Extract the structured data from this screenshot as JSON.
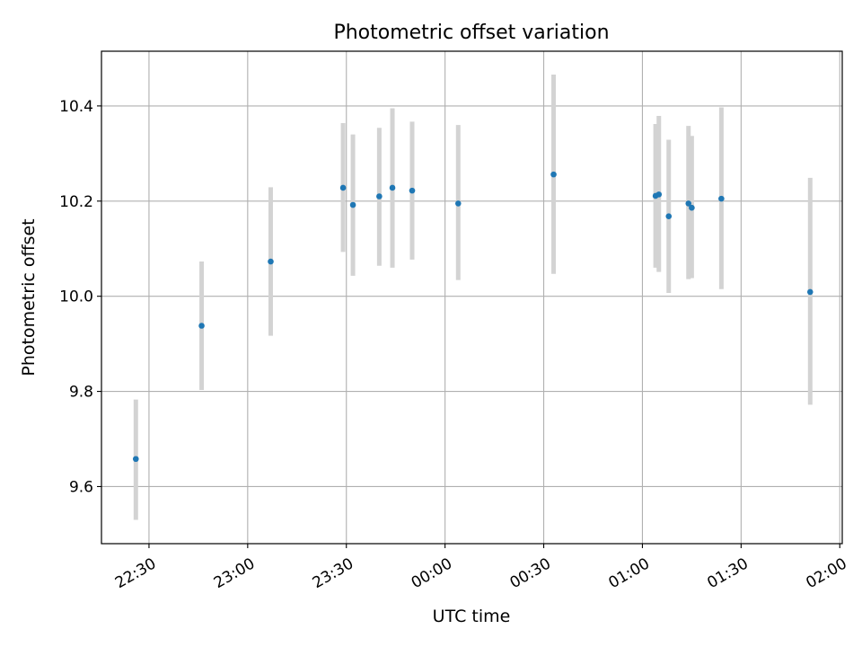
{
  "chart_data": {
    "type": "scatter",
    "title": "Photometric offset variation",
    "xlabel": "UTC time",
    "ylabel": "Photometric offset",
    "x_axis_kind": "time",
    "xlim": [
      "22:15:33",
      "02:00:45"
    ],
    "ylim": [
      9.48,
      10.515
    ],
    "grid": true,
    "x_ticks": [
      "22:30",
      "23:00",
      "23:30",
      "00:00",
      "00:30",
      "01:00",
      "01:30",
      "02:00"
    ],
    "y_ticks": [
      "9.6",
      "9.8",
      "10.0",
      "10.2",
      "10.4"
    ],
    "series": [
      {
        "marker_color": "#1f77b4",
        "errorbar_color": "#d3d3d3",
        "points": [
          {
            "x": "22:26",
            "y": 9.658,
            "err_low": 9.53,
            "err_high": 9.783
          },
          {
            "x": "22:46",
            "y": 9.938,
            "err_low": 9.803,
            "err_high": 10.073
          },
          {
            "x": "23:07",
            "y": 10.073,
            "err_low": 9.917,
            "err_high": 10.229
          },
          {
            "x": "23:29",
            "y": 10.228,
            "err_low": 10.093,
            "err_high": 10.364
          },
          {
            "x": "23:32",
            "y": 10.192,
            "err_low": 10.043,
            "err_high": 10.34
          },
          {
            "x": "23:40",
            "y": 10.21,
            "err_low": 10.064,
            "err_high": 10.354
          },
          {
            "x": "23:44",
            "y": 10.228,
            "err_low": 10.06,
            "err_high": 10.395
          },
          {
            "x": "23:50",
            "y": 10.222,
            "err_low": 10.077,
            "err_high": 10.367
          },
          {
            "x": "00:04",
            "y": 10.195,
            "err_low": 10.034,
            "err_high": 10.36
          },
          {
            "x": "00:33",
            "y": 10.256,
            "err_low": 10.047,
            "err_high": 10.466
          },
          {
            "x": "01:04",
            "y": 10.211,
            "err_low": 10.06,
            "err_high": 10.362
          },
          {
            "x": "01:05",
            "y": 10.214,
            "err_low": 10.051,
            "err_high": 10.379
          },
          {
            "x": "01:08",
            "y": 10.168,
            "err_low": 10.007,
            "err_high": 10.329
          },
          {
            "x": "01:14",
            "y": 10.195,
            "err_low": 10.036,
            "err_high": 10.358
          },
          {
            "x": "01:15",
            "y": 10.186,
            "err_low": 10.038,
            "err_high": 10.337
          },
          {
            "x": "01:24",
            "y": 10.205,
            "err_low": 10.015,
            "err_high": 10.397
          },
          {
            "x": "01:51",
            "y": 10.009,
            "err_low": 9.772,
            "err_high": 10.249
          }
        ]
      }
    ]
  }
}
